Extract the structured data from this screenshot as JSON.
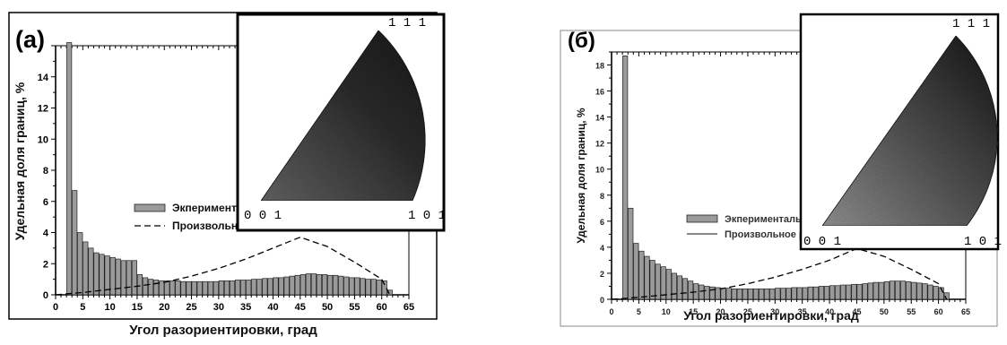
{
  "chart_data": [
    {
      "type": "bar",
      "panel_label": "(a)",
      "xlabel": "Угол разориентировки, град",
      "ylabel": "Удельная доля границ, %",
      "xlim": [
        0,
        65
      ],
      "ylim": [
        0,
        16
      ],
      "xticks": [
        0,
        5,
        10,
        15,
        20,
        25,
        30,
        35,
        40,
        45,
        50,
        55,
        60,
        65
      ],
      "yticks": [
        0,
        2,
        4,
        6,
        8,
        10,
        12,
        14
      ],
      "bar_width_deg": 1,
      "grid": false,
      "legend_position": "center-right",
      "series": [
        {
          "name": "Экпериментальное распределение",
          "style": "bars",
          "color": "#9a9a9a",
          "x": [
            2.5,
            3.5,
            4.5,
            5.5,
            6.5,
            7.5,
            8.5,
            9.5,
            10.5,
            11.5,
            12.5,
            13.5,
            14.5,
            15.5,
            16.5,
            17.5,
            18.5,
            19.5,
            20.5,
            21.5,
            22.5,
            23.5,
            24.5,
            25.5,
            26.5,
            27.5,
            28.5,
            29.5,
            30.5,
            31.5,
            32.5,
            33.5,
            34.5,
            35.5,
            36.5,
            37.5,
            38.5,
            39.5,
            40.5,
            41.5,
            42.5,
            43.5,
            44.5,
            45.5,
            46.5,
            47.5,
            48.5,
            49.5,
            50.5,
            51.5,
            52.5,
            53.5,
            54.5,
            55.5,
            56.5,
            57.5,
            58.5,
            59.5,
            60.5,
            61.5
          ],
          "values": [
            16.2,
            6.7,
            4.0,
            3.4,
            3.0,
            2.7,
            2.6,
            2.5,
            2.4,
            2.3,
            2.2,
            2.2,
            2.2,
            1.3,
            1.1,
            1.0,
            0.95,
            0.9,
            0.9,
            0.9,
            0.9,
            0.85,
            0.85,
            0.85,
            0.85,
            0.85,
            0.85,
            0.85,
            0.9,
            0.9,
            0.9,
            0.95,
            0.95,
            0.95,
            1.0,
            1.0,
            1.05,
            1.05,
            1.1,
            1.1,
            1.15,
            1.2,
            1.25,
            1.3,
            1.35,
            1.35,
            1.3,
            1.3,
            1.25,
            1.25,
            1.2,
            1.15,
            1.1,
            1.1,
            1.05,
            1.0,
            1.0,
            0.95,
            0.9,
            0.3
          ]
        },
        {
          "name": "Произвольное распределение",
          "style": "dashed-line",
          "color": "#000000",
          "x": [
            0,
            5,
            10,
            15,
            20,
            25,
            30,
            35,
            40,
            45,
            50,
            55,
            60,
            61.5
          ],
          "values": [
            0,
            0.15,
            0.35,
            0.55,
            0.8,
            1.2,
            1.7,
            2.3,
            3.0,
            3.7,
            3.1,
            2.1,
            1.0,
            0
          ]
        }
      ],
      "inset": {
        "type": "inverse-pole-figure",
        "poles": [
          "0 0 1",
          "1 0 1",
          "1 1 1"
        ]
      }
    },
    {
      "type": "bar",
      "panel_label": "(б)",
      "xlabel": "Угол разориентировки, град",
      "ylabel": "Удельная доля границ, %",
      "xlim": [
        0,
        65
      ],
      "ylim": [
        0,
        19
      ],
      "xticks": [
        0,
        5,
        10,
        15,
        20,
        25,
        30,
        35,
        40,
        45,
        50,
        55,
        60,
        65
      ],
      "yticks": [
        0,
        2,
        4,
        6,
        8,
        10,
        12,
        14,
        16,
        18
      ],
      "bar_width_deg": 1,
      "grid": false,
      "legend_position": "center-right",
      "series": [
        {
          "name": "Экпериментальное распределение",
          "style": "bars",
          "color": "#9a9a9a",
          "x": [
            2.5,
            3.5,
            4.5,
            5.5,
            6.5,
            7.5,
            8.5,
            9.5,
            10.5,
            11.5,
            12.5,
            13.5,
            14.5,
            15.5,
            16.5,
            17.5,
            18.5,
            19.5,
            20.5,
            21.5,
            22.5,
            23.5,
            24.5,
            25.5,
            26.5,
            27.5,
            28.5,
            29.5,
            30.5,
            31.5,
            32.5,
            33.5,
            34.5,
            35.5,
            36.5,
            37.5,
            38.5,
            39.5,
            40.5,
            41.5,
            42.5,
            43.5,
            44.5,
            45.5,
            46.5,
            47.5,
            48.5,
            49.5,
            50.5,
            51.5,
            52.5,
            53.5,
            54.5,
            55.5,
            56.5,
            57.5,
            58.5,
            59.5,
            60.5,
            61.5
          ],
          "values": [
            18.7,
            7.0,
            4.3,
            3.7,
            3.3,
            3.0,
            2.7,
            2.5,
            2.3,
            2.0,
            1.8,
            1.6,
            1.4,
            1.2,
            1.1,
            1.0,
            0.95,
            0.9,
            0.85,
            0.85,
            0.8,
            0.8,
            0.8,
            0.8,
            0.8,
            0.8,
            0.8,
            0.8,
            0.85,
            0.85,
            0.85,
            0.9,
            0.9,
            0.9,
            0.95,
            0.95,
            1.0,
            1.0,
            1.05,
            1.05,
            1.1,
            1.1,
            1.15,
            1.15,
            1.2,
            1.25,
            1.3,
            1.3,
            1.35,
            1.4,
            1.4,
            1.4,
            1.35,
            1.3,
            1.25,
            1.2,
            1.1,
            1.0,
            0.9,
            0.5
          ]
        },
        {
          "name": "Произвольное распределение",
          "style": "dashed-line",
          "color": "#000000",
          "x": [
            0,
            5,
            10,
            15,
            20,
            25,
            30,
            35,
            40,
            45,
            50,
            55,
            60,
            61.5
          ],
          "values": [
            0,
            0.15,
            0.35,
            0.55,
            0.8,
            1.2,
            1.7,
            2.3,
            3.0,
            3.9,
            3.3,
            2.3,
            1.2,
            0
          ]
        }
      ],
      "inset": {
        "type": "inverse-pole-figure",
        "poles": [
          "0 0 1",
          "1 0 1",
          "1 1 1"
        ]
      }
    }
  ]
}
